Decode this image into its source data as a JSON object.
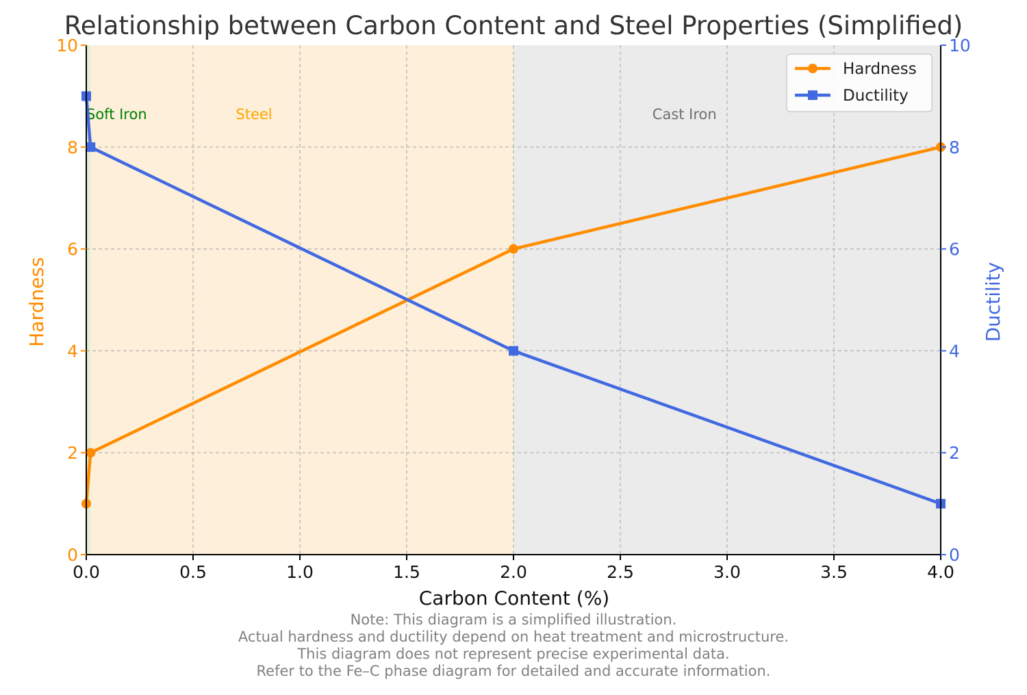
{
  "chart_data": {
    "type": "line",
    "title": "Relationship between Carbon Content and Steel Properties (Simplified)",
    "xlabel": "Carbon Content (%)",
    "ylabel_left": "Hardness",
    "ylabel_right": "Ductility",
    "xlim": [
      0,
      4
    ],
    "ylim_left": [
      0,
      10
    ],
    "ylim_right": [
      0,
      10
    ],
    "x_ticks": [
      0,
      0.5,
      1,
      1.5,
      2,
      2.5,
      3,
      3.5,
      4
    ],
    "x_tick_labels": [
      "0.0",
      "0.5",
      "1.0",
      "1.5",
      "2.0",
      "2.5",
      "3.0",
      "3.5",
      "4.0"
    ],
    "y_ticks": [
      0,
      2,
      4,
      6,
      8,
      10
    ],
    "y_tick_labels": [
      "0",
      "2",
      "4",
      "6",
      "8",
      "10"
    ],
    "grid": true,
    "legend_position": "top-right",
    "regions": [
      {
        "label": "Soft Iron",
        "x_start": 0,
        "x_end": 0.02,
        "color": "#e2efd3",
        "label_color": "#008000",
        "label_x": 0.0,
        "label_y": 8.55
      },
      {
        "label": "Steel",
        "x_start": 0.02,
        "x_end": 2.0,
        "color": "#fdefd9",
        "label_color": "#ffa500",
        "label_x": 0.7,
        "label_y": 8.55
      },
      {
        "label": "Cast Iron",
        "x_start": 2.0,
        "x_end": 4.0,
        "color": "#ebebeb",
        "label_color": "#707070",
        "label_x": 2.65,
        "label_y": 8.55
      }
    ],
    "series": [
      {
        "name": "Hardness",
        "axis": "left",
        "color": "#ff8c00",
        "marker": "circle",
        "x": [
          0,
          0.02,
          2.0,
          4.0
        ],
        "y": [
          1,
          2,
          6,
          8
        ]
      },
      {
        "name": "Ductility",
        "axis": "right",
        "color": "#4169e1",
        "marker": "square",
        "x": [
          0,
          0.02,
          2.0,
          4.0
        ],
        "y": [
          9,
          8,
          4,
          1
        ]
      }
    ]
  },
  "notes": [
    "Note: This diagram is a simplified illustration.",
    "Actual hardness and ductility depend on heat treatment and microstructure.",
    "This diagram does not represent precise experimental data.",
    "Refer to the Fe–C phase diagram for detailed and accurate information."
  ]
}
